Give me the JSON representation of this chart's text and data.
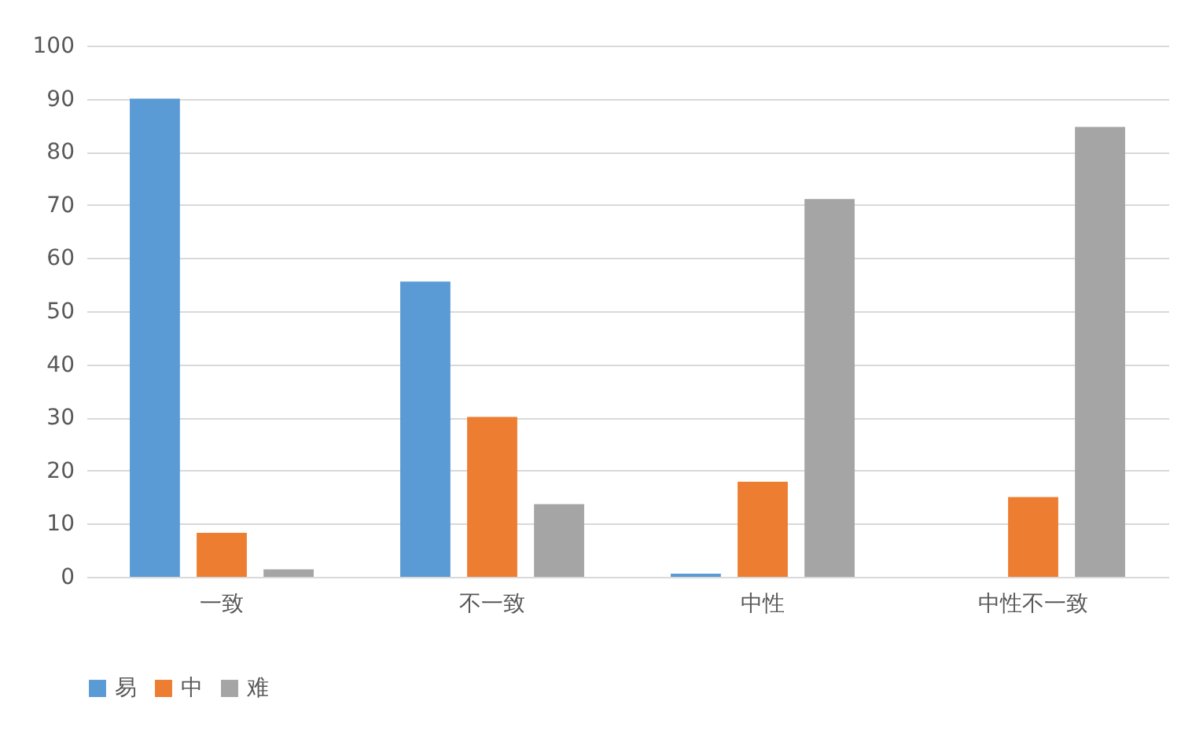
{
  "chart_data": {
    "type": "bar",
    "categories": [
      "一致",
      "不一致",
      "中性",
      "中性不一致"
    ],
    "series": [
      {
        "name": "易",
        "color": "#5b9bd5",
        "values": [
          90,
          55.6,
          0.6,
          0
        ]
      },
      {
        "name": "中",
        "color": "#ed7d31",
        "values": [
          8.3,
          30.1,
          17.9,
          15
        ]
      },
      {
        "name": "难",
        "color": "#a5a5a5",
        "values": [
          1.4,
          13.7,
          71.1,
          84.7
        ]
      }
    ],
    "ylim": [
      0,
      100
    ],
    "yticks": [
      0,
      10,
      20,
      30,
      40,
      50,
      60,
      70,
      80,
      90,
      100
    ],
    "grid": "y",
    "legend": "bottom"
  }
}
